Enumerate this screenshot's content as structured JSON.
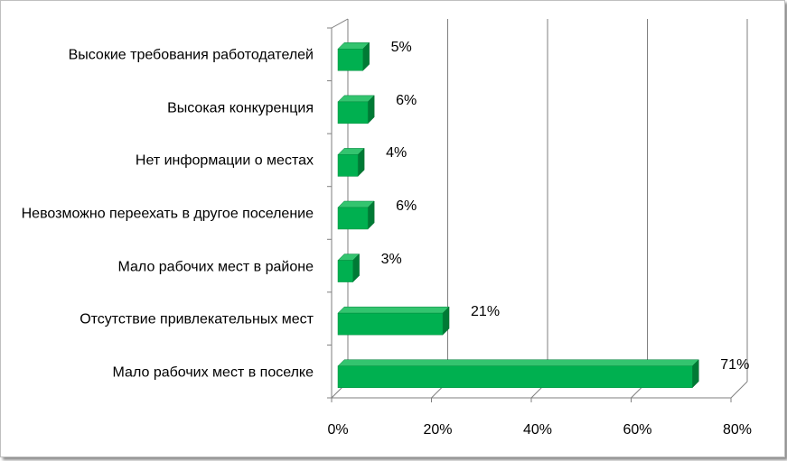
{
  "chart_data": {
    "type": "bar",
    "orientation": "horizontal",
    "categories": [
      "Высокие требования работодателей",
      "Высокая конкуренция",
      "Нет информации о местах",
      "Невозможно переехать в другое поселение",
      "Мало рабочих мест в районе",
      "Отсутствие привлекательных мест",
      "Мало рабочих мест в поселке"
    ],
    "values": [
      5,
      6,
      4,
      6,
      3,
      21,
      71
    ],
    "value_labels": [
      "5%",
      "6%",
      "4%",
      "6%",
      "3%",
      "21%",
      "71%"
    ],
    "xlim": [
      0,
      80
    ],
    "ticks": [
      "0%",
      "20%",
      "40%",
      "60%",
      "80%"
    ],
    "grid": true,
    "bar_color": "#00b050"
  }
}
